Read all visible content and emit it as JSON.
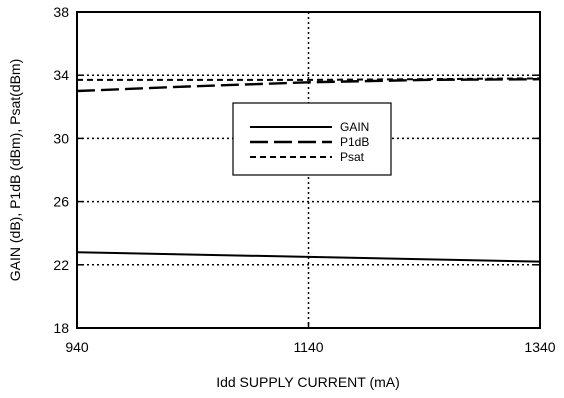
{
  "chart_data": {
    "type": "line",
    "title": "",
    "xlabel": "Idd SUPPLY CURRENT (mA)",
    "ylabel": "GAIN (dB), P1dB (dBm), Psat(dBm)",
    "xlim": [
      940,
      1340
    ],
    "ylim": [
      18,
      38
    ],
    "x_ticks": [
      940,
      1140,
      1340
    ],
    "y_ticks": [
      18,
      22,
      26,
      30,
      34,
      38
    ],
    "grid": "dotted",
    "legend_position": "center",
    "series": [
      {
        "name": "GAIN",
        "style": "solid",
        "x": [
          940,
          1140,
          1340
        ],
        "y": [
          22.8,
          22.5,
          22.2
        ]
      },
      {
        "name": "P1dB",
        "style": "long-dash",
        "x": [
          940,
          1040,
          1140,
          1240,
          1340
        ],
        "y": [
          33.0,
          33.3,
          33.55,
          33.7,
          33.75
        ]
      },
      {
        "name": "Psat",
        "style": "short-dash",
        "x": [
          940,
          1140,
          1340
        ],
        "y": [
          33.7,
          33.7,
          33.8
        ]
      }
    ]
  }
}
